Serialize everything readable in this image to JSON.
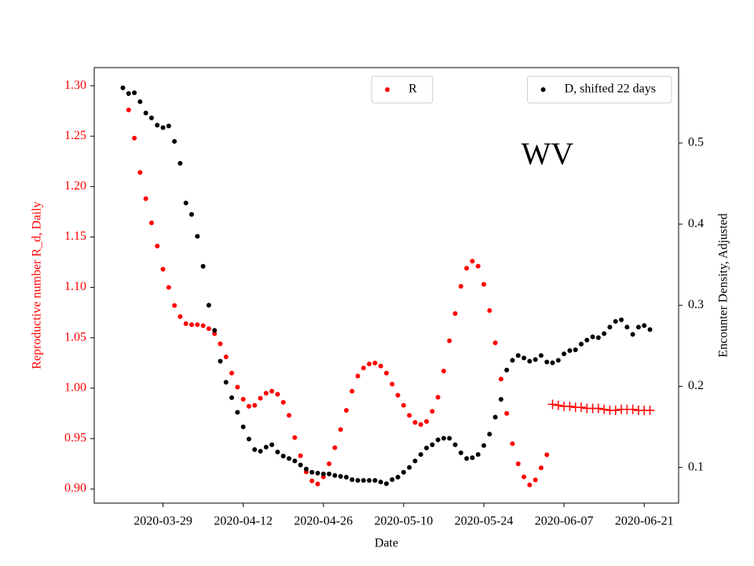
{
  "chart_data": {
    "type": "scatter",
    "annotation": "WV",
    "xlabel": "Date",
    "ylabel": "Reproductive number R_d, Daily",
    "y2label": "Encounter Density, Adjusted",
    "ylabel_color": "red",
    "xlim": [
      "2020-03-17",
      "2020-06-27"
    ],
    "xticks": [
      "2020-03-29",
      "2020-04-12",
      "2020-04-26",
      "2020-05-10",
      "2020-05-24",
      "2020-06-07",
      "2020-06-21"
    ],
    "ylim": [
      0.886,
      1.318
    ],
    "yticks": [
      {
        "value": 0.9,
        "label": "0.90"
      },
      0.95,
      {
        "value": 1.0,
        "label": "1.00"
      },
      1.05,
      {
        "value": 1.1,
        "label": "1.10"
      },
      1.15,
      {
        "value": 1.2,
        "label": "1.20"
      },
      1.25,
      {
        "value": 1.3,
        "label": "1.30"
      }
    ],
    "y2lim": [
      0.056,
      0.593
    ],
    "y2ticks": [
      0.1,
      0.2,
      0.3,
      0.4,
      0.5
    ],
    "series": [
      {
        "name": "R",
        "color": "red",
        "marker": "dot",
        "legend_loc": "upper center",
        "x": [
          "2020-03-23",
          "2020-03-24",
          "2020-03-25",
          "2020-03-26",
          "2020-03-27",
          "2020-03-28",
          "2020-03-29",
          "2020-03-30",
          "2020-03-31",
          "2020-04-01",
          "2020-04-02",
          "2020-04-03",
          "2020-04-04",
          "2020-04-05",
          "2020-04-06",
          "2020-04-07",
          "2020-04-08",
          "2020-04-09",
          "2020-04-10",
          "2020-04-11",
          "2020-04-12",
          "2020-04-13",
          "2020-04-14",
          "2020-04-15",
          "2020-04-16",
          "2020-04-17",
          "2020-04-18",
          "2020-04-19",
          "2020-04-20",
          "2020-04-21",
          "2020-04-22",
          "2020-04-23",
          "2020-04-24",
          "2020-04-25",
          "2020-04-26",
          "2020-04-27",
          "2020-04-28",
          "2020-04-29",
          "2020-04-30",
          "2020-05-01",
          "2020-05-02",
          "2020-05-03",
          "2020-05-04",
          "2020-05-05",
          "2020-05-06",
          "2020-05-07",
          "2020-05-08",
          "2020-05-09",
          "2020-05-10",
          "2020-05-11",
          "2020-05-12",
          "2020-05-13",
          "2020-05-14",
          "2020-05-15",
          "2020-05-16",
          "2020-05-17",
          "2020-05-18",
          "2020-05-19",
          "2020-05-20",
          "2020-05-21",
          "2020-05-22",
          "2020-05-23",
          "2020-05-24",
          "2020-05-25",
          "2020-05-26",
          "2020-05-27",
          "2020-05-28",
          "2020-05-29",
          "2020-05-30",
          "2020-05-31",
          "2020-06-01",
          "2020-06-02",
          "2020-06-03",
          "2020-06-04"
        ],
        "values": [
          1.276,
          1.248,
          1.214,
          1.188,
          1.164,
          1.141,
          1.118,
          1.1,
          1.082,
          1.071,
          1.064,
          1.063,
          1.063,
          1.062,
          1.059,
          1.054,
          1.044,
          1.031,
          1.015,
          1.001,
          0.989,
          0.982,
          0.983,
          0.99,
          0.995,
          0.997,
          0.994,
          0.986,
          0.973,
          0.951,
          0.933,
          0.917,
          0.908,
          0.905,
          0.912,
          0.925,
          0.941,
          0.959,
          0.978,
          0.997,
          1.012,
          1.02,
          1.024,
          1.025,
          1.022,
          1.015,
          1.004,
          0.993,
          0.983,
          0.973,
          0.966,
          0.964,
          0.967,
          0.977,
          0.991,
          1.017,
          1.047,
          1.074,
          1.101,
          1.119,
          1.126,
          1.121,
          1.103,
          1.077,
          1.045,
          1.009,
          0.975,
          0.945,
          0.925,
          0.912,
          0.904,
          0.909,
          0.921,
          0.934
        ]
      },
      {
        "color": "red",
        "marker": "plus",
        "x": [
          "2020-06-05",
          "2020-06-06",
          "2020-06-07",
          "2020-06-08",
          "2020-06-09",
          "2020-06-10",
          "2020-06-11",
          "2020-06-12",
          "2020-06-13",
          "2020-06-14",
          "2020-06-15",
          "2020-06-16",
          "2020-06-17",
          "2020-06-18",
          "2020-06-19",
          "2020-06-20",
          "2020-06-21",
          "2020-06-22"
        ],
        "values": [
          0.984,
          0.983,
          0.982,
          0.982,
          0.981,
          0.981,
          0.98,
          0.98,
          0.98,
          0.979,
          0.978,
          0.978,
          0.979,
          0.979,
          0.979,
          0.978,
          0.978,
          0.978
        ]
      },
      {
        "name": "D, shifted 22 days",
        "color": "black",
        "marker": "dot",
        "axis": "y2",
        "legend_loc": "upper right",
        "x": [
          "2020-03-22",
          "2020-03-23",
          "2020-03-24",
          "2020-03-25",
          "2020-03-26",
          "2020-03-27",
          "2020-03-28",
          "2020-03-29",
          "2020-03-30",
          "2020-03-31",
          "2020-04-01",
          "2020-04-02",
          "2020-04-03",
          "2020-04-04",
          "2020-04-05",
          "2020-04-06",
          "2020-04-07",
          "2020-04-08",
          "2020-04-09",
          "2020-04-10",
          "2020-04-11",
          "2020-04-12",
          "2020-04-13",
          "2020-04-14",
          "2020-04-15",
          "2020-04-16",
          "2020-04-17",
          "2020-04-18",
          "2020-04-19",
          "2020-04-20",
          "2020-04-21",
          "2020-04-22",
          "2020-04-23",
          "2020-04-24",
          "2020-04-25",
          "2020-04-26",
          "2020-04-27",
          "2020-04-28",
          "2020-04-29",
          "2020-04-30",
          "2020-05-01",
          "2020-05-02",
          "2020-05-03",
          "2020-05-04",
          "2020-05-05",
          "2020-05-06",
          "2020-05-07",
          "2020-05-08",
          "2020-05-09",
          "2020-05-10",
          "2020-05-11",
          "2020-05-12",
          "2020-05-13",
          "2020-05-14",
          "2020-05-15",
          "2020-05-16",
          "2020-05-17",
          "2020-05-18",
          "2020-05-19",
          "2020-05-20",
          "2020-05-21",
          "2020-05-22",
          "2020-05-23",
          "2020-05-24",
          "2020-05-25",
          "2020-05-26",
          "2020-05-27",
          "2020-05-28",
          "2020-05-29",
          "2020-05-30",
          "2020-05-31",
          "2020-06-01",
          "2020-06-02",
          "2020-06-03",
          "2020-06-04",
          "2020-06-05",
          "2020-06-06",
          "2020-06-07",
          "2020-06-08",
          "2020-06-09",
          "2020-06-10",
          "2020-06-11",
          "2020-06-12",
          "2020-06-13",
          "2020-06-14",
          "2020-06-15",
          "2020-06-16",
          "2020-06-17",
          "2020-06-18",
          "2020-06-19",
          "2020-06-20",
          "2020-06-21",
          "2020-06-22"
        ],
        "values": [
          0.568,
          0.561,
          0.562,
          0.551,
          0.537,
          0.531,
          0.522,
          0.519,
          0.521,
          0.502,
          0.475,
          0.426,
          0.412,
          0.385,
          0.348,
          0.3,
          0.269,
          0.231,
          0.205,
          0.186,
          0.168,
          0.15,
          0.135,
          0.122,
          0.12,
          0.125,
          0.128,
          0.119,
          0.114,
          0.111,
          0.108,
          0.103,
          0.098,
          0.094,
          0.093,
          0.092,
          0.092,
          0.09,
          0.089,
          0.088,
          0.085,
          0.084,
          0.084,
          0.084,
          0.084,
          0.082,
          0.08,
          0.085,
          0.088,
          0.094,
          0.1,
          0.108,
          0.116,
          0.124,
          0.128,
          0.134,
          0.136,
          0.136,
          0.128,
          0.118,
          0.111,
          0.112,
          0.116,
          0.127,
          0.141,
          0.162,
          0.184,
          0.22,
          0.232,
          0.238,
          0.235,
          0.231,
          0.233,
          0.238,
          0.23,
          0.229,
          0.232,
          0.24,
          0.244,
          0.245,
          0.252,
          0.257,
          0.261,
          0.26,
          0.265,
          0.273,
          0.28,
          0.282,
          0.273,
          0.264,
          0.273,
          0.275,
          0.27
        ]
      }
    ]
  }
}
